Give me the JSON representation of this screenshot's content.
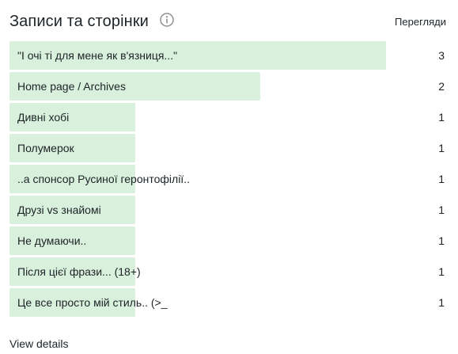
{
  "header": {
    "title": "Записи та сторінки",
    "column_label": "Перегляди",
    "info_icon": "info-icon"
  },
  "colors": {
    "bar": "#d9f0dc",
    "text": "#1d2327",
    "icon": "#8c8f94"
  },
  "rows": [
    {
      "label": "\"І очі ті для мене як в'язниця...\"",
      "count": "3",
      "value": 3
    },
    {
      "label": "Home page / Archives",
      "count": "2",
      "value": 2
    },
    {
      "label": "Дивні хобі",
      "count": "1",
      "value": 1
    },
    {
      "label": "Полумерок",
      "count": "1",
      "value": 1
    },
    {
      "label": "..а спонсор Русиної геронтофілії..",
      "count": "1",
      "value": 1
    },
    {
      "label": "Друзі vs знайомі",
      "count": "1",
      "value": 1
    },
    {
      "label": "Не думаючи..",
      "count": "1",
      "value": 1
    },
    {
      "label": "Після цієї фрази... (18+)",
      "count": "1",
      "value": 1
    },
    {
      "label": "Це все просто мій стиль.. (>_",
      "count": "1",
      "value": 1
    }
  ],
  "footer": {
    "link_label": "View details"
  }
}
